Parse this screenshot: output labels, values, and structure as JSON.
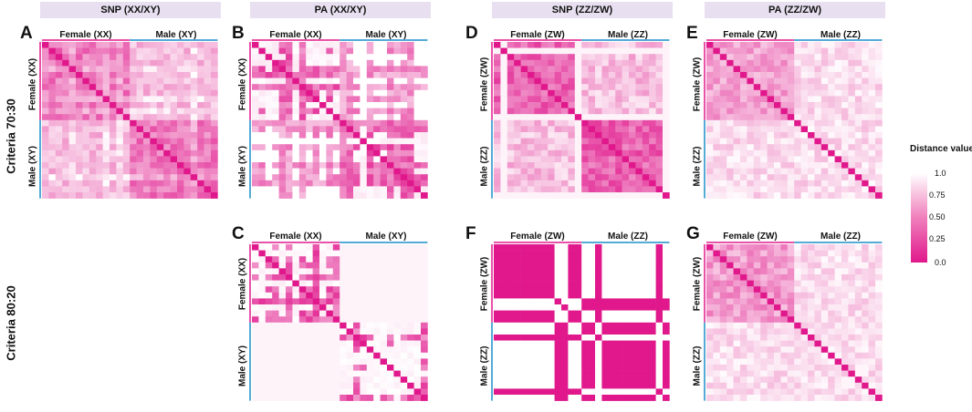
{
  "column_headers": [
    "SNP (XX/XY)",
    "PA (XX/XY)",
    "SNP  (ZZ/ZW)",
    "PA  (ZZ/ZW)"
  ],
  "row_labels": [
    "Criteria 70:30",
    "Criteria 80:20"
  ],
  "legend": {
    "title": "Distance value",
    "ticks": [
      "1.0",
      "0.75",
      "0.50",
      "0.25",
      "0.0"
    ],
    "color_low": "#e0188c",
    "color_high": "#ffffff"
  },
  "colors": {
    "female_bar": "#e0188c",
    "male_bar": "#1a8fc8",
    "header_bg": "#e8e0f0"
  },
  "chart_data": [
    {
      "panel": "A",
      "type": "heatmap",
      "groups": [
        "Female (XX)",
        "Male (XY)"
      ],
      "pattern": "snp_xy"
    },
    {
      "panel": "B",
      "type": "heatmap",
      "groups": [
        "Female (XX)",
        "Male (XY)"
      ],
      "pattern": "pa_xy"
    },
    {
      "panel": "C",
      "type": "heatmap",
      "groups": [
        "Female (XX)",
        "Male (XY)"
      ],
      "pattern": "pa_xy_80"
    },
    {
      "panel": "D",
      "type": "heatmap",
      "groups": [
        "Female (ZW)",
        "Male (ZZ)"
      ],
      "pattern": "snp_zw"
    },
    {
      "panel": "E",
      "type": "heatmap",
      "groups": [
        "Female (ZW)",
        "Male (ZZ)"
      ],
      "pattern": "pa_zw"
    },
    {
      "panel": "F",
      "type": "heatmap",
      "groups": [
        "Female (ZW)",
        "Male (ZZ)"
      ],
      "pattern": "snp_zw_80"
    },
    {
      "panel": "G",
      "type": "heatmap",
      "groups": [
        "Female (ZW)",
        "Male (ZZ)"
      ],
      "pattern": "pa_zw_80"
    }
  ]
}
